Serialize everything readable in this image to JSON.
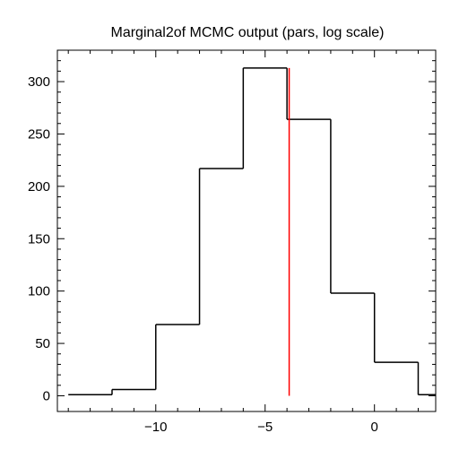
{
  "chart_data": {
    "type": "histogram",
    "title": "Marginal2of MCMC output (pars, log scale)",
    "xlabel": "",
    "ylabel": "",
    "xlim": [
      -14.5,
      2.8
    ],
    "ylim": [
      -15,
      330
    ],
    "x_ticks": [
      -10,
      -5,
      0
    ],
    "x_tick_labels": [
      "−10",
      "−5",
      "0"
    ],
    "y_ticks": [
      0,
      50,
      100,
      150,
      200,
      250,
      300
    ],
    "y_tick_labels": [
      "0",
      "50",
      "100",
      "150",
      "200",
      "250",
      "300"
    ],
    "bins": [
      {
        "x0": -14,
        "x1": -12,
        "count": 1
      },
      {
        "x0": -12,
        "x1": -10,
        "count": 6
      },
      {
        "x0": -10,
        "x1": -8,
        "count": 68
      },
      {
        "x0": -8,
        "x1": -6,
        "count": 217
      },
      {
        "x0": -6,
        "x1": -4,
        "count": 313
      },
      {
        "x0": -4,
        "x1": -2,
        "count": 264
      },
      {
        "x0": -2,
        "x1": 0,
        "count": 98
      },
      {
        "x0": 0,
        "x1": 2,
        "count": 32
      },
      {
        "x0": 2,
        "x1": 2.8,
        "count": 1
      }
    ],
    "marker_line": {
      "x": -3.9,
      "y0": 0,
      "y1": 313,
      "color": "#ff0000"
    },
    "histogram_color": "#000000",
    "grid": false
  }
}
